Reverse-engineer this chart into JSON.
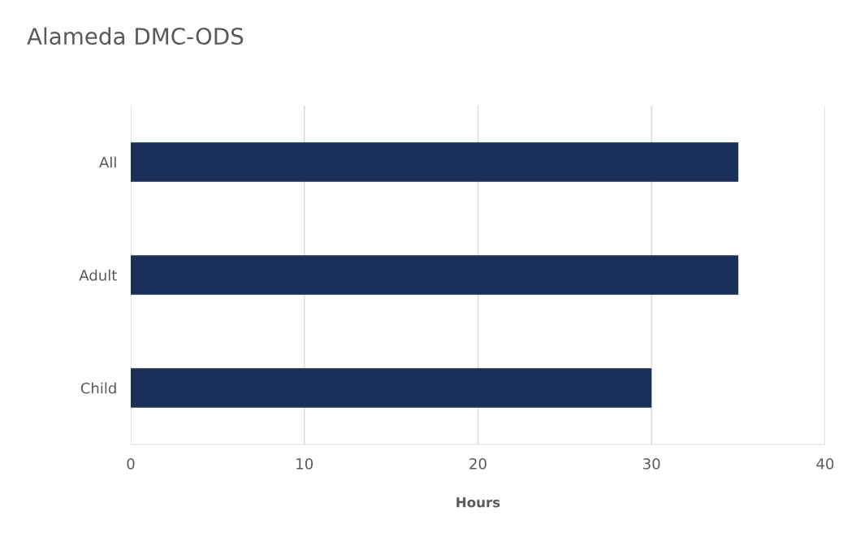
{
  "chart_data": {
    "type": "bar",
    "orientation": "horizontal",
    "title": "Alameda DMC-ODS",
    "xlabel": "Hours",
    "categories": [
      "All",
      "Adult",
      "Child"
    ],
    "values": [
      35,
      35,
      30
    ],
    "color": "#1a3058",
    "xlim": [
      0,
      40
    ],
    "xticks": [
      0,
      10,
      20,
      30,
      40
    ],
    "grid": "x"
  }
}
